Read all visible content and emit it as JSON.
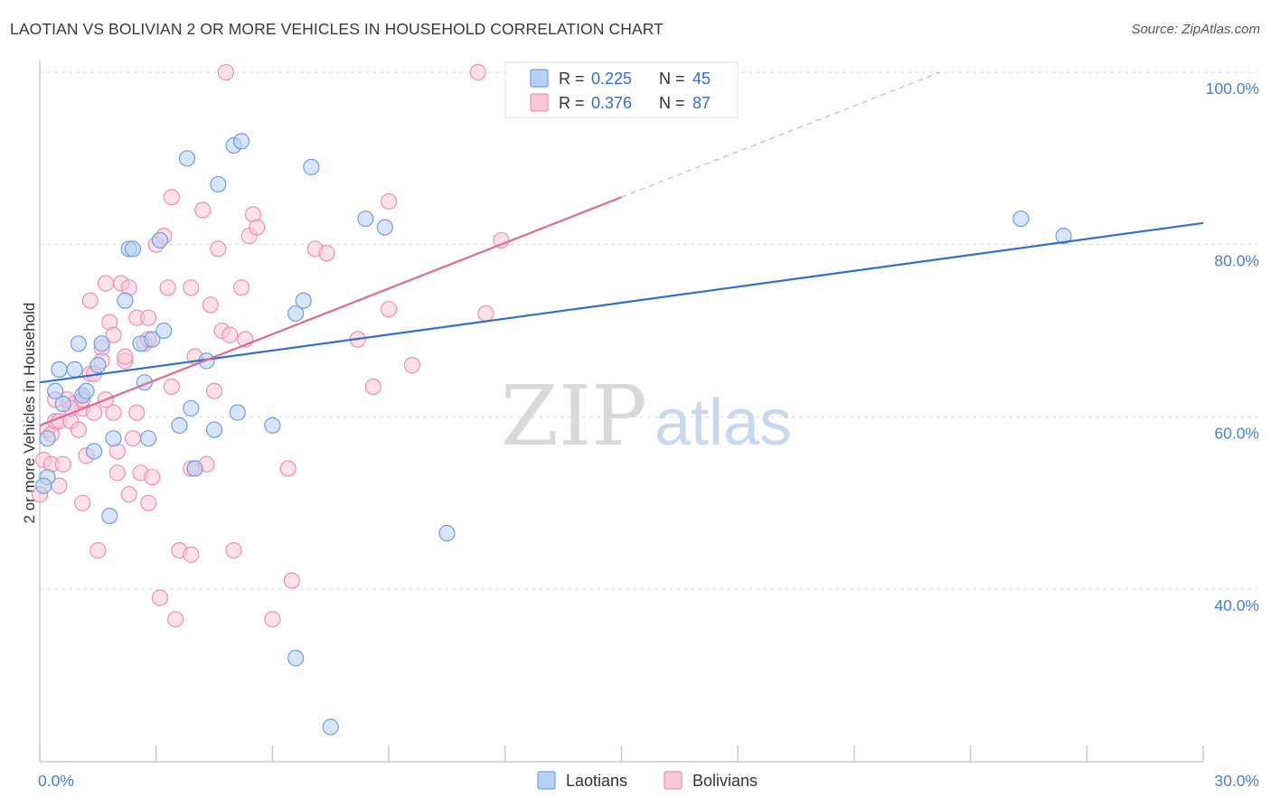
{
  "title": "LAOTIAN VS BOLIVIAN 2 OR MORE VEHICLES IN HOUSEHOLD CORRELATION CHART",
  "source": "Source: ZipAtlas.com",
  "watermark": {
    "zip": "ZIP",
    "atlas": "atlas"
  },
  "chart_data": {
    "type": "scatter",
    "xlabel": "",
    "ylabel": "2 or more Vehicles in Household",
    "xlim": [
      0,
      30
    ],
    "ylim": [
      18,
      100
    ],
    "x_tick_labels": [
      {
        "value": 0,
        "label": "0.0%"
      },
      {
        "value": 30,
        "label": "30.0%"
      }
    ],
    "y_tick_labels": [
      {
        "value": 40,
        "label": "40.0%"
      },
      {
        "value": 60,
        "label": "60.0%"
      },
      {
        "value": 80,
        "label": "80.0%"
      },
      {
        "value": 100,
        "label": "100.0%"
      }
    ],
    "grid": true,
    "legend_position": "top-center",
    "series": [
      {
        "name": "Laotians",
        "color": "#6f9fe0",
        "fill": "#b8d0f3",
        "line_color": "#2f6fce",
        "R": "0.225",
        "N": "45",
        "trend": {
          "x0": 0,
          "y0": 64.0,
          "x1": 30,
          "y1": 82.5,
          "dashed_until": 30
        },
        "points": [
          [
            0.2,
            53.0
          ],
          [
            0.1,
            52.0
          ],
          [
            0.2,
            57.5
          ],
          [
            0.4,
            63.0
          ],
          [
            0.5,
            65.5
          ],
          [
            0.6,
            61.5
          ],
          [
            0.9,
            65.5
          ],
          [
            1.0,
            68.5
          ],
          [
            1.1,
            62.5
          ],
          [
            1.2,
            63.0
          ],
          [
            1.4,
            56.0
          ],
          [
            1.5,
            66.0
          ],
          [
            1.6,
            68.5
          ],
          [
            1.8,
            48.5
          ],
          [
            1.9,
            57.5
          ],
          [
            2.2,
            73.5
          ],
          [
            2.3,
            79.5
          ],
          [
            2.4,
            79.5
          ],
          [
            2.6,
            68.5
          ],
          [
            2.7,
            64.0
          ],
          [
            2.8,
            57.5
          ],
          [
            2.9,
            69.0
          ],
          [
            3.1,
            80.5
          ],
          [
            3.2,
            70.0
          ],
          [
            3.6,
            59.0
          ],
          [
            3.8,
            90.0
          ],
          [
            3.9,
            61.0
          ],
          [
            4.0,
            54.0
          ],
          [
            4.3,
            66.5
          ],
          [
            4.5,
            58.5
          ],
          [
            4.6,
            87.0
          ],
          [
            5.0,
            91.5
          ],
          [
            5.1,
            60.5
          ],
          [
            5.2,
            92.0
          ],
          [
            6.0,
            59.0
          ],
          [
            6.6,
            72.0
          ],
          [
            6.8,
            73.5
          ],
          [
            7.0,
            89.0
          ],
          [
            6.6,
            32.0
          ],
          [
            7.5,
            24.0
          ],
          [
            8.4,
            83.0
          ],
          [
            8.9,
            82.0
          ],
          [
            10.5,
            46.5
          ],
          [
            25.3,
            83.0
          ],
          [
            26.4,
            81.0
          ]
        ]
      },
      {
        "name": "Bolivians",
        "color": "#f090b0",
        "fill": "#f9c8d8",
        "line_color": "#e06a96",
        "R": "0.376",
        "N": "87",
        "trend": {
          "x0": 0,
          "y0": 59.0,
          "x1": 15.0,
          "y1": 85.5,
          "dashed_until": 30
        },
        "points": [
          [
            0.0,
            51.0
          ],
          [
            0.1,
            55.0
          ],
          [
            0.2,
            58.5
          ],
          [
            0.3,
            54.5
          ],
          [
            0.3,
            58.0
          ],
          [
            0.4,
            59.5
          ],
          [
            0.5,
            52.0
          ],
          [
            0.5,
            59.5
          ],
          [
            0.6,
            54.5
          ],
          [
            0.7,
            62.0
          ],
          [
            0.8,
            59.5
          ],
          [
            0.9,
            61.5
          ],
          [
            1.0,
            58.5
          ],
          [
            1.1,
            61.0
          ],
          [
            1.1,
            62.0
          ],
          [
            1.1,
            50.0
          ],
          [
            1.2,
            55.5
          ],
          [
            1.3,
            73.5
          ],
          [
            1.3,
            65.0
          ],
          [
            1.4,
            65.0
          ],
          [
            1.4,
            60.5
          ],
          [
            1.5,
            44.5
          ],
          [
            1.6,
            68.0
          ],
          [
            1.6,
            66.5
          ],
          [
            1.7,
            75.5
          ],
          [
            1.7,
            62.0
          ],
          [
            1.8,
            71.0
          ],
          [
            1.9,
            69.5
          ],
          [
            1.9,
            60.5
          ],
          [
            2.0,
            56.0
          ],
          [
            2.0,
            53.5
          ],
          [
            2.1,
            75.5
          ],
          [
            2.2,
            66.5
          ],
          [
            2.2,
            67.0
          ],
          [
            2.3,
            75.0
          ],
          [
            2.3,
            51.0
          ],
          [
            2.4,
            57.5
          ],
          [
            2.5,
            71.5
          ],
          [
            2.5,
            60.5
          ],
          [
            2.6,
            53.5
          ],
          [
            2.7,
            68.5
          ],
          [
            2.8,
            69.0
          ],
          [
            2.8,
            71.5
          ],
          [
            2.8,
            50.0
          ],
          [
            2.9,
            53.0
          ],
          [
            3.0,
            80.0
          ],
          [
            3.1,
            39.0
          ],
          [
            3.2,
            81.0
          ],
          [
            3.3,
            75.0
          ],
          [
            3.4,
            63.5
          ],
          [
            3.4,
            85.5
          ],
          [
            3.5,
            36.5
          ],
          [
            3.6,
            44.5
          ],
          [
            3.9,
            54.0
          ],
          [
            3.9,
            44.0
          ],
          [
            3.9,
            75.0
          ],
          [
            4.0,
            54.0
          ],
          [
            4.0,
            67.0
          ],
          [
            4.2,
            84.0
          ],
          [
            4.3,
            54.5
          ],
          [
            4.4,
            73.0
          ],
          [
            4.5,
            63.0
          ],
          [
            4.6,
            79.5
          ],
          [
            4.7,
            70.0
          ],
          [
            4.9,
            69.5
          ],
          [
            5.0,
            44.5
          ],
          [
            5.2,
            75.0
          ],
          [
            5.3,
            69.0
          ],
          [
            5.4,
            81.0
          ],
          [
            5.5,
            83.5
          ],
          [
            5.6,
            82.0
          ],
          [
            6.0,
            36.5
          ],
          [
            6.4,
            54.0
          ],
          [
            6.5,
            41.0
          ],
          [
            7.1,
            79.5
          ],
          [
            7.4,
            79.0
          ],
          [
            8.2,
            69.0
          ],
          [
            8.6,
            63.5
          ],
          [
            9.0,
            72.5
          ],
          [
            9.0,
            85.0
          ],
          [
            9.6,
            66.0
          ],
          [
            11.5,
            72.0
          ],
          [
            11.9,
            80.5
          ],
          [
            11.3,
            100.0
          ],
          [
            4.8,
            100.0
          ],
          [
            0.4,
            62.0
          ],
          [
            0.8,
            61.0
          ]
        ]
      }
    ]
  }
}
